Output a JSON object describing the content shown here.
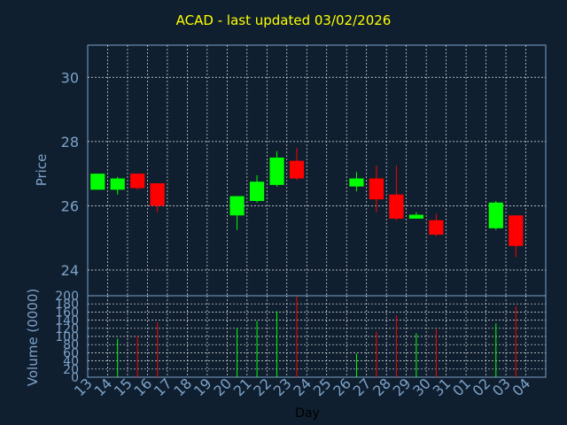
{
  "page_title": "ACAD - last updated 03/02/2026",
  "colors": {
    "background": "#0f1f2f",
    "frame": "#7ea2c9",
    "grid": "#e6e6e6",
    "up": "#00ff00",
    "down": "#ff0000",
    "title": "#ffff00"
  },
  "chart_data": [
    {
      "type": "candlestick",
      "title": "ACAD - last updated 03/02/2026",
      "ylabel": "Price",
      "ylim": [
        23.2,
        31.0
      ],
      "yticks": [
        24,
        26,
        28,
        30
      ],
      "grid": true,
      "x_ticks": [
        "13",
        "14",
        "15",
        "16",
        "17",
        "18",
        "19",
        "20",
        "21",
        "22",
        "23",
        "24",
        "25",
        "26",
        "27",
        "28",
        "29",
        "30",
        "31",
        "01",
        "02",
        "03",
        "04"
      ],
      "candles": [
        {
          "day": "13",
          "open": 26.5,
          "high": 27.0,
          "low": 26.5,
          "close": 27.0
        },
        {
          "day": "14",
          "open": 26.5,
          "high": 26.9,
          "low": 26.35,
          "close": 26.85
        },
        {
          "day": "15",
          "open": 27.0,
          "high": 27.0,
          "low": 26.5,
          "close": 26.55
        },
        {
          "day": "16",
          "open": 26.7,
          "high": 26.7,
          "low": 25.8,
          "close": 26.0
        },
        {
          "day": "20",
          "open": 25.7,
          "high": 26.3,
          "low": 25.25,
          "close": 26.3
        },
        {
          "day": "21",
          "open": 26.15,
          "high": 26.95,
          "low": 26.1,
          "close": 26.75
        },
        {
          "day": "22",
          "open": 26.65,
          "high": 27.7,
          "low": 26.6,
          "close": 27.5
        },
        {
          "day": "23",
          "open": 27.4,
          "high": 27.8,
          "low": 26.8,
          "close": 26.85
        },
        {
          "day": "26",
          "open": 26.6,
          "high": 27.05,
          "low": 26.45,
          "close": 26.85
        },
        {
          "day": "27",
          "open": 26.85,
          "high": 27.25,
          "low": 25.8,
          "close": 26.2
        },
        {
          "day": "28",
          "open": 26.35,
          "high": 27.25,
          "low": 25.55,
          "close": 25.6
        },
        {
          "day": "29",
          "open": 25.6,
          "high": 25.8,
          "low": 25.6,
          "close": 25.72
        },
        {
          "day": "30",
          "open": 25.55,
          "high": 25.75,
          "low": 25.05,
          "close": 25.1
        },
        {
          "day": "02",
          "open": 25.3,
          "high": 26.15,
          "low": 25.25,
          "close": 26.1
        },
        {
          "day": "03",
          "open": 25.7,
          "high": 25.7,
          "low": 24.4,
          "close": 24.75
        }
      ]
    },
    {
      "type": "bar",
      "ylabel": "Volume (0000)",
      "xlabel": "Day",
      "ylim": [
        0,
        200
      ],
      "yticks": [
        0,
        20,
        40,
        60,
        80,
        100,
        120,
        140,
        160,
        180,
        200
      ],
      "grid": true,
      "volumes": [
        {
          "day": "14",
          "value": 95,
          "dir": "up"
        },
        {
          "day": "15",
          "value": 102,
          "dir": "down"
        },
        {
          "day": "16",
          "value": 135,
          "dir": "down"
        },
        {
          "day": "20",
          "value": 120,
          "dir": "up"
        },
        {
          "day": "21",
          "value": 138,
          "dir": "up"
        },
        {
          "day": "22",
          "value": 162,
          "dir": "up"
        },
        {
          "day": "23",
          "value": 198,
          "dir": "down"
        },
        {
          "day": "26",
          "value": 58,
          "dir": "up"
        },
        {
          "day": "27",
          "value": 112,
          "dir": "down"
        },
        {
          "day": "28",
          "value": 152,
          "dir": "down"
        },
        {
          "day": "29",
          "value": 108,
          "dir": "up"
        },
        {
          "day": "30",
          "value": 118,
          "dir": "down"
        },
        {
          "day": "02",
          "value": 132,
          "dir": "up"
        },
        {
          "day": "03",
          "value": 175,
          "dir": "down"
        }
      ]
    }
  ]
}
